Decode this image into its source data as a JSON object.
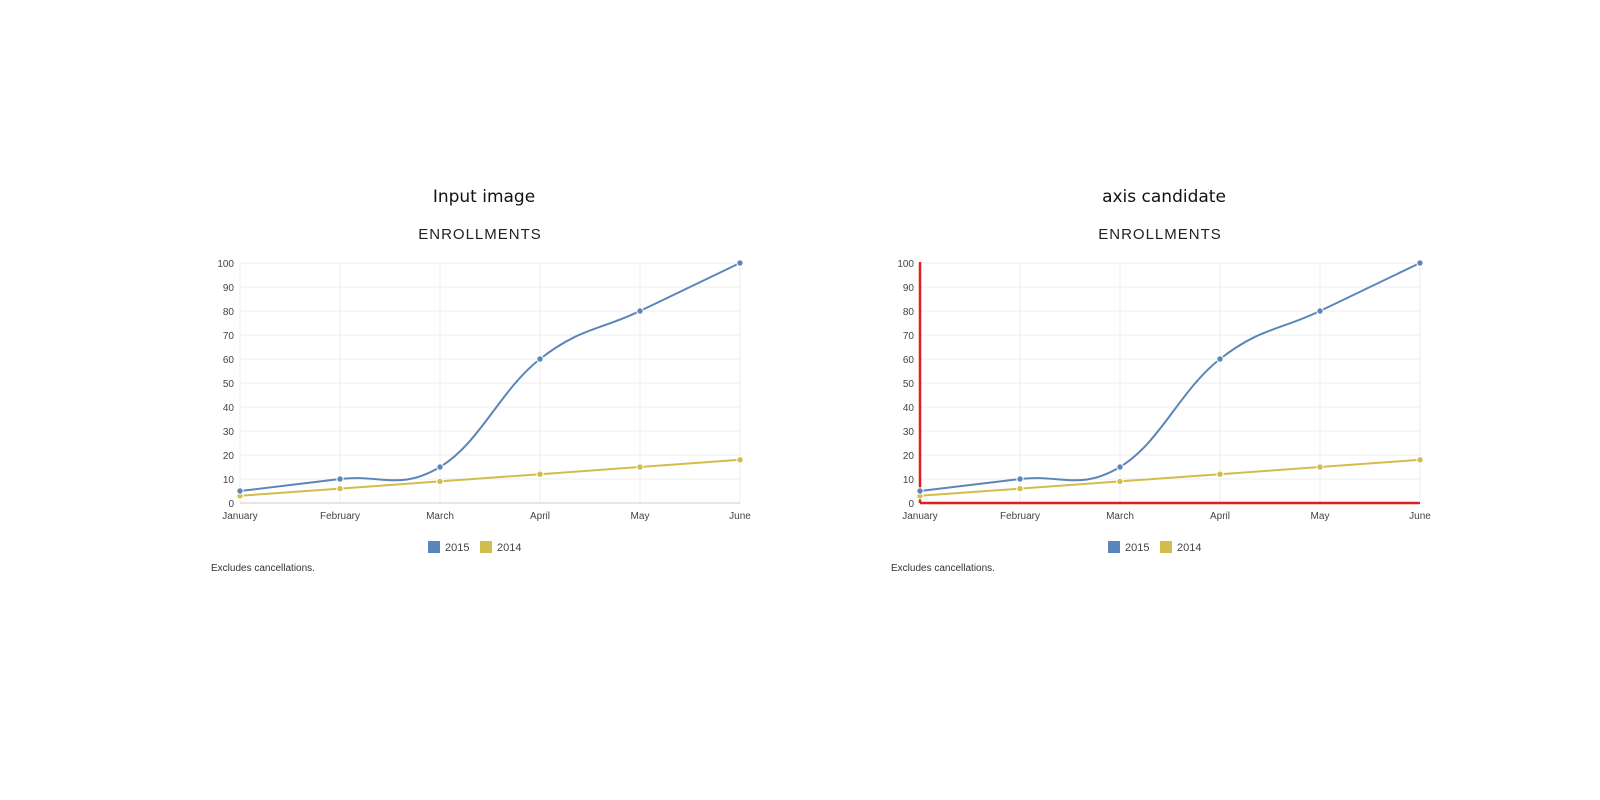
{
  "panels": [
    {
      "heading": "Input image"
    },
    {
      "heading": "axis candidate"
    }
  ],
  "colors": {
    "series_2015": "#5b86b9",
    "series_2014": "#d2bd4c",
    "grid": "#ececec",
    "axis_highlight": "#e02020"
  },
  "chart_data": [
    {
      "type": "line",
      "title": "ENROLLMENTS",
      "categories": [
        "January",
        "February",
        "March",
        "April",
        "May",
        "June"
      ],
      "series": [
        {
          "name": "2015",
          "values": [
            5,
            10,
            15,
            60,
            80,
            100
          ]
        },
        {
          "name": "2014",
          "values": [
            3,
            6,
            9,
            12,
            15,
            18
          ]
        }
      ],
      "ylim": [
        0,
        100
      ],
      "yticks": [
        0,
        10,
        20,
        30,
        40,
        50,
        60,
        70,
        80,
        90,
        100
      ],
      "grid": true,
      "legend": "bottom",
      "footnote": "Excludes cancellations."
    },
    {
      "type": "line",
      "title": "ENROLLMENTS",
      "categories": [
        "January",
        "February",
        "March",
        "April",
        "May",
        "June"
      ],
      "series": [
        {
          "name": "2015",
          "values": [
            5,
            10,
            15,
            60,
            80,
            100
          ]
        },
        {
          "name": "2014",
          "values": [
            3,
            6,
            9,
            12,
            15,
            18
          ]
        }
      ],
      "ylim": [
        0,
        100
      ],
      "yticks": [
        0,
        10,
        20,
        30,
        40,
        50,
        60,
        70,
        80,
        90,
        100
      ],
      "grid": true,
      "legend": "bottom",
      "footnote": "Excludes cancellations.",
      "axis_highlight": true
    }
  ]
}
